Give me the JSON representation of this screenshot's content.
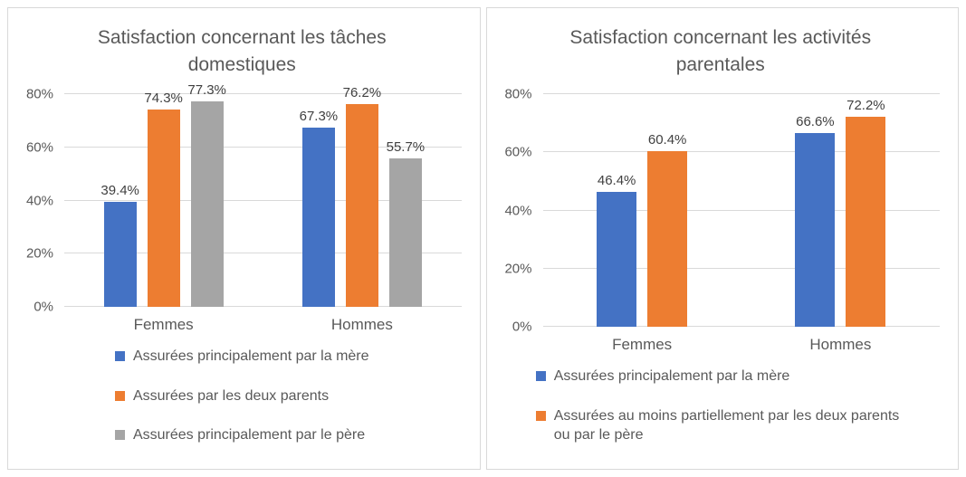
{
  "chart_data": [
    {
      "type": "bar",
      "title": "Satisfaction concernant les tâches domestiques",
      "categories": [
        "Femmes",
        "Hommes"
      ],
      "series": [
        {
          "name": "Assurées principalement par la mère",
          "color": "#4472C4",
          "values": [
            39.4,
            67.3
          ],
          "value_labels": [
            "39.4%",
            "67.3%"
          ]
        },
        {
          "name": "Assurées par les deux parents",
          "color": "#ED7D31",
          "values": [
            74.3,
            76.2
          ],
          "value_labels": [
            "74.3%",
            "76.2%"
          ]
        },
        {
          "name": "Assurées principalement par le père",
          "color": "#A5A5A5",
          "values": [
            77.3,
            55.7
          ],
          "value_labels": [
            "77.3%",
            "55.7%"
          ]
        }
      ],
      "xlabel": "",
      "ylabel": "",
      "ylim": [
        0,
        80
      ],
      "y_ticks": [
        {
          "value": 0,
          "label": "0%"
        },
        {
          "value": 20,
          "label": "20%"
        },
        {
          "value": 40,
          "label": "40%"
        },
        {
          "value": 60,
          "label": "60%"
        },
        {
          "value": 80,
          "label": "80%"
        }
      ],
      "grid": true,
      "legend_position": "bottom"
    },
    {
      "type": "bar",
      "title": "Satisfaction concernant les activités parentales",
      "categories": [
        "Femmes",
        "Hommes"
      ],
      "series": [
        {
          "name": "Assurées principalement par la mère",
          "color": "#4472C4",
          "values": [
            46.4,
            66.6
          ],
          "value_labels": [
            "46.4%",
            "66.6%"
          ]
        },
        {
          "name": "Assurées au moins partiellement par les deux parents ou par le père",
          "color": "#ED7D31",
          "values": [
            60.4,
            72.2
          ],
          "value_labels": [
            "60.4%",
            "72.2%"
          ]
        }
      ],
      "xlabel": "",
      "ylabel": "",
      "ylim": [
        0,
        80
      ],
      "y_ticks": [
        {
          "value": 0,
          "label": "0%"
        },
        {
          "value": 20,
          "label": "20%"
        },
        {
          "value": 40,
          "label": "40%"
        },
        {
          "value": 60,
          "label": "60%"
        },
        {
          "value": 80,
          "label": "80%"
        }
      ],
      "grid": true,
      "legend_position": "bottom"
    }
  ],
  "colors": {
    "blue_series": "#4472C4",
    "orange_series": "#ED7D31",
    "gray_series": "#A5A5A5",
    "gridline": "#D9D9D9",
    "panel_border": "#D9D9D9",
    "axis_text": "#595959",
    "data_label_text": "#404040"
  }
}
